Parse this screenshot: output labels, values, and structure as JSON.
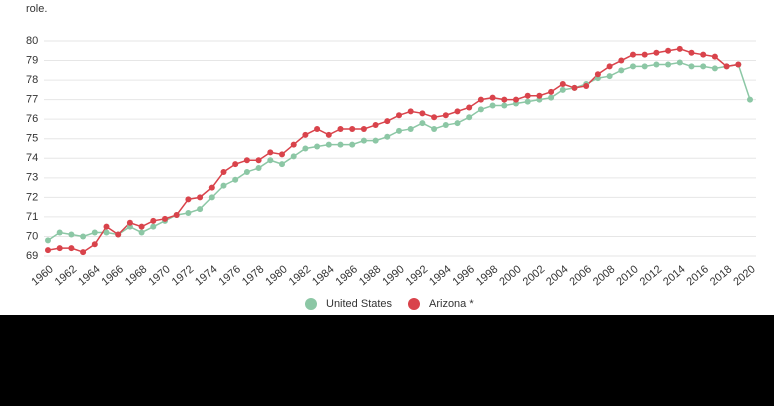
{
  "chart_data": {
    "type": "line",
    "note_text": "role.",
    "x": [
      1960,
      1961,
      1962,
      1963,
      1964,
      1965,
      1966,
      1967,
      1968,
      1969,
      1970,
      1971,
      1972,
      1973,
      1974,
      1975,
      1976,
      1977,
      1978,
      1979,
      1980,
      1981,
      1982,
      1983,
      1984,
      1985,
      1986,
      1987,
      1988,
      1989,
      1990,
      1991,
      1992,
      1993,
      1994,
      1995,
      1996,
      1997,
      1998,
      1999,
      2000,
      2001,
      2002,
      2003,
      2004,
      2005,
      2006,
      2007,
      2008,
      2009,
      2010,
      2011,
      2012,
      2013,
      2014,
      2015,
      2016,
      2017,
      2018,
      2019,
      2020
    ],
    "series": [
      {
        "name": "United States",
        "color": "#8cc7a5",
        "values": [
          69.8,
          70.2,
          70.1,
          70.0,
          70.2,
          70.2,
          70.1,
          70.5,
          70.2,
          70.5,
          70.8,
          71.1,
          71.2,
          71.4,
          72.0,
          72.6,
          72.9,
          73.3,
          73.5,
          73.9,
          73.7,
          74.1,
          74.5,
          74.6,
          74.7,
          74.7,
          74.7,
          74.9,
          74.9,
          75.1,
          75.4,
          75.5,
          75.8,
          75.5,
          75.7,
          75.8,
          76.1,
          76.5,
          76.7,
          76.7,
          76.8,
          76.9,
          77.0,
          77.1,
          77.5,
          77.6,
          77.8,
          78.1,
          78.2,
          78.5,
          78.7,
          78.7,
          78.8,
          78.8,
          78.9,
          78.7,
          78.7,
          78.6,
          78.7,
          78.8,
          77.0
        ]
      },
      {
        "name": "Arizona *",
        "color": "#d9434b",
        "values": [
          69.3,
          69.4,
          69.4,
          69.2,
          69.6,
          70.5,
          70.1,
          70.7,
          70.5,
          70.8,
          70.9,
          71.1,
          71.9,
          72.0,
          72.5,
          73.3,
          73.7,
          73.9,
          73.9,
          74.3,
          74.2,
          74.7,
          75.2,
          75.5,
          75.2,
          75.5,
          75.5,
          75.5,
          75.7,
          75.9,
          76.2,
          76.4,
          76.3,
          76.1,
          76.2,
          76.4,
          76.6,
          77.0,
          77.1,
          77.0,
          77.0,
          77.2,
          77.2,
          77.4,
          77.8,
          77.6,
          77.7,
          78.3,
          78.7,
          79.0,
          79.3,
          79.3,
          79.4,
          79.5,
          79.6,
          79.4,
          79.3,
          79.2,
          78.7,
          78.8,
          null
        ]
      }
    ],
    "xlim": [
      1960,
      2020
    ],
    "xticks": [
      1960,
      1962,
      1964,
      1966,
      1968,
      1970,
      1972,
      1974,
      1976,
      1978,
      1980,
      1982,
      1984,
      1986,
      1988,
      1990,
      1992,
      1994,
      1996,
      1998,
      2000,
      2002,
      2004,
      2006,
      2008,
      2010,
      2012,
      2014,
      2016,
      2018,
      2020
    ],
    "ylim": [
      69,
      80
    ],
    "yticks": [
      69,
      70,
      71,
      72,
      73,
      74,
      75,
      76,
      77,
      78,
      79,
      80
    ],
    "grid": true
  }
}
